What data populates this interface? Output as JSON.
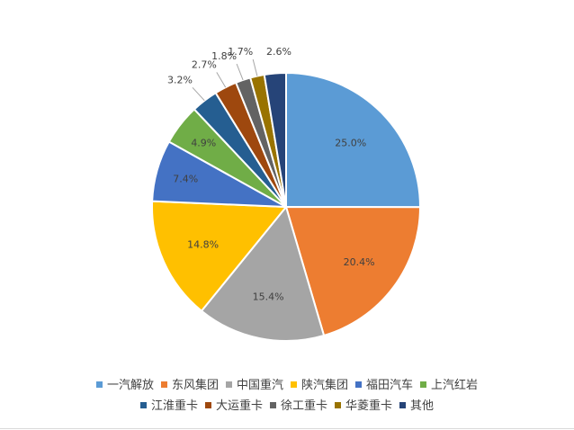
{
  "chart_data": {
    "type": "pie",
    "title": "",
    "slices": [
      {
        "label": "一汽解放",
        "value": 25.0,
        "display": "25.0%",
        "color": "#5B9BD5"
      },
      {
        "label": "东风集团",
        "value": 20.4,
        "display": "20.4%",
        "color": "#ED7D31"
      },
      {
        "label": "中国重汽",
        "value": 15.4,
        "display": "15.4%",
        "color": "#A5A5A5"
      },
      {
        "label": "陕汽集团",
        "value": 14.8,
        "display": "14.8%",
        "color": "#FFC000"
      },
      {
        "label": "福田汽车",
        "value": 7.4,
        "display": "7.4%",
        "color": "#4472C4"
      },
      {
        "label": "上汽红岩",
        "value": 4.9,
        "display": "4.9%",
        "color": "#70AD47"
      },
      {
        "label": "江淮重卡",
        "value": 3.2,
        "display": "3.2%",
        "color": "#255E91"
      },
      {
        "label": "大运重卡",
        "value": 2.7,
        "display": "2.7%",
        "color": "#9E480E"
      },
      {
        "label": "徐工重卡",
        "value": 1.8,
        "display": "1.8%",
        "color": "#636363"
      },
      {
        "label": "华菱重卡",
        "value": 1.7,
        "display": "1.7%",
        "color": "#997300"
      },
      {
        "label": "其他",
        "value": 2.6,
        "display": "2.6%",
        "color": "#264478"
      }
    ],
    "legend_position": "bottom"
  }
}
